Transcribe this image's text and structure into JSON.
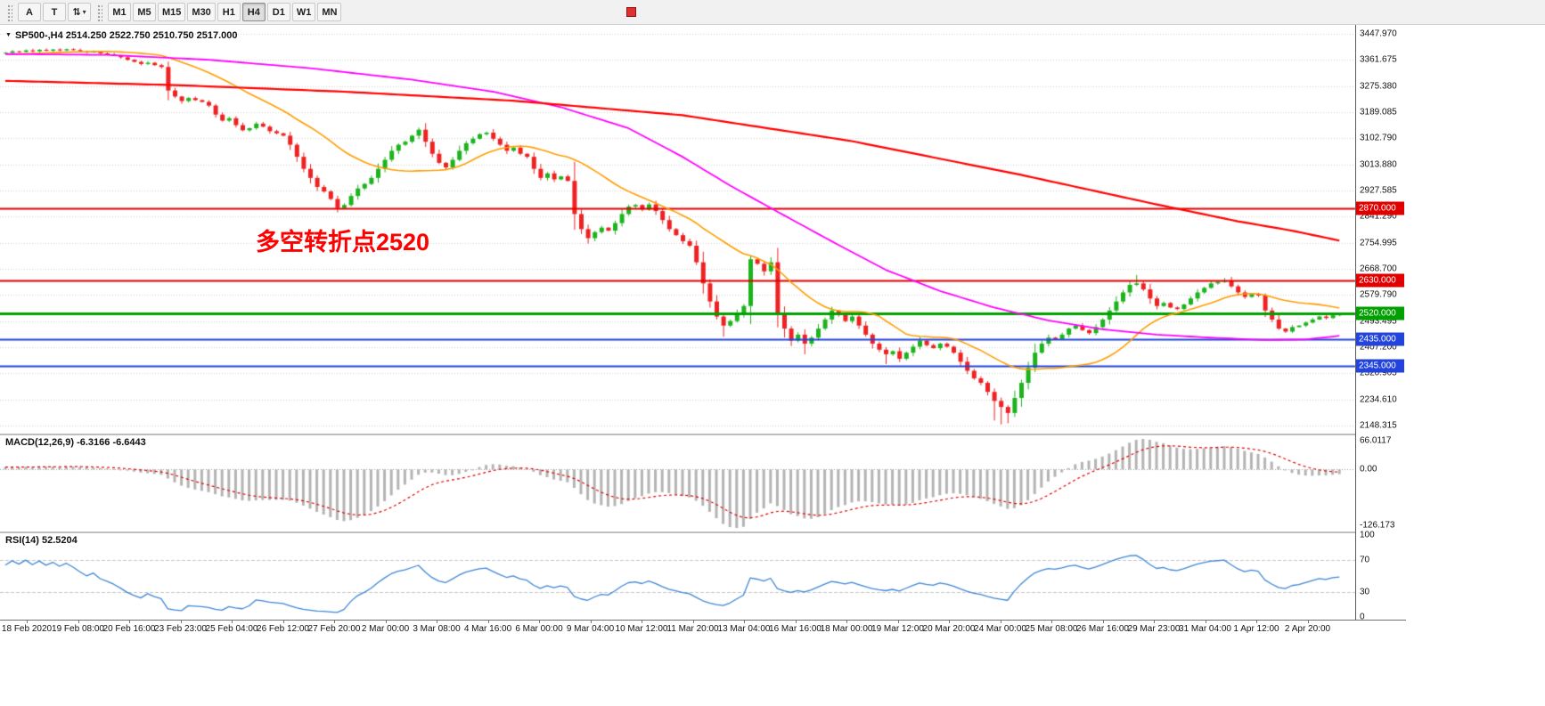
{
  "toolbar": {
    "annotation_button": "A",
    "text_button": "T",
    "arrows_icon": "⇅",
    "caret_icon": "▾",
    "timeframes": [
      "M1",
      "M5",
      "M15",
      "M30",
      "H1",
      "H4",
      "D1",
      "W1",
      "MN"
    ],
    "active_timeframe": "H4"
  },
  "chart": {
    "title": "SP500-,H4  2514.250 2522.750 2510.750 2517.000",
    "context_arrow_icon": "▼",
    "annotation": "多空转折点2520",
    "price_axis_labels": [
      "3447.970",
      "3361.675",
      "3275.380",
      "3189.085",
      "3102.790",
      "3013.880",
      "2927.585",
      "2841.290",
      "2754.995",
      "2668.700",
      "2579.790",
      "2493.495",
      "2407.200",
      "2320.905",
      "2234.610",
      "2148.315"
    ]
  },
  "macd": {
    "label": "MACD(12,26,9) -6.3166 -6.6443",
    "axis_labels": [
      "66.0117",
      "0.00",
      "-126.173"
    ]
  },
  "rsi": {
    "label": "RSI(14) 52.5204",
    "axis_labels": [
      "100",
      "70",
      "30",
      "0"
    ]
  },
  "time_axis_labels": [
    "18 Feb 2020",
    "19 Feb 08:00",
    "20 Feb 16:00",
    "23 Feb 23:00",
    "25 Feb 04:00",
    "26 Feb 12:00",
    "27 Feb 20:00",
    "2 Mar 00:00",
    "3 Mar 08:00",
    "4 Mar 16:00",
    "6 Mar 00:00",
    "9 Mar 04:00",
    "10 Mar 12:00",
    "11 Mar 20:00",
    "13 Mar 04:00",
    "16 Mar 16:00",
    "18 Mar 00:00",
    "19 Mar 12:00",
    "20 Mar 20:00",
    "24 Mar 00:00",
    "25 Mar 08:00",
    "26 Mar 16:00",
    "29 Mar 23:00",
    "31 Mar 04:00",
    "1 Apr 12:00",
    "2 Apr 20:00"
  ],
  "chart_data": {
    "type": "candlestick",
    "symbol": "SP500-",
    "timeframe": "H4",
    "current_ohlc": {
      "open": 2514.25,
      "high": 2522.75,
      "low": 2510.75,
      "close": 2517.0
    },
    "y_range": [
      2148.315,
      3447.97
    ],
    "closes": [
      3385,
      3390,
      3388,
      3393,
      3390,
      3395,
      3392,
      3396,
      3393,
      3397,
      3394,
      3390,
      3386,
      3389,
      3383,
      3380,
      3376,
      3370,
      3362,
      3355,
      3348,
      3352,
      3344,
      3338,
      3260,
      3240,
      3225,
      3235,
      3228,
      3222,
      3210,
      3180,
      3160,
      3168,
      3145,
      3128,
      3135,
      3150,
      3140,
      3125,
      3118,
      3110,
      3080,
      3040,
      3000,
      2970,
      2940,
      2925,
      2900,
      2870,
      2880,
      2910,
      2935,
      2950,
      2970,
      3000,
      3030,
      3060,
      3080,
      3090,
      3110,
      3130,
      3090,
      3050,
      3020,
      3005,
      3030,
      3060,
      3085,
      3100,
      3115,
      3120,
      3100,
      3080,
      3060,
      3070,
      3050,
      3040,
      3000,
      2970,
      2985,
      2965,
      2975,
      2960,
      2850,
      2800,
      2770,
      2790,
      2805,
      2795,
      2820,
      2850,
      2875,
      2880,
      2865,
      2882,
      2860,
      2830,
      2800,
      2780,
      2760,
      2745,
      2690,
      2620,
      2560,
      2510,
      2480,
      2495,
      2520,
      2545,
      2700,
      2685,
      2660,
      2690,
      2520,
      2470,
      2430,
      2450,
      2420,
      2440,
      2470,
      2500,
      2530,
      2515,
      2495,
      2510,
      2480,
      2450,
      2420,
      2400,
      2385,
      2395,
      2370,
      2390,
      2410,
      2430,
      2415,
      2405,
      2420,
      2410,
      2390,
      2360,
      2330,
      2305,
      2290,
      2260,
      2230,
      2210,
      2190,
      2240,
      2290,
      2340,
      2390,
      2420,
      2440,
      2435,
      2450,
      2470,
      2480,
      2465,
      2455,
      2475,
      2500,
      2530,
      2560,
      2590,
      2615,
      2620,
      2600,
      2570,
      2545,
      2555,
      2540,
      2535,
      2550,
      2570,
      2590,
      2605,
      2620,
      2625,
      2630,
      2610,
      2590,
      2575,
      2585,
      2580,
      2530,
      2500,
      2470,
      2460,
      2475,
      2480,
      2490,
      2500,
      2510,
      2505,
      2514,
      2517
    ],
    "wick_overrides": {
      "high": {
        "9": 3399,
        "110": 2712,
        "167": 2648,
        "180": 2638,
        "197": 2523
      },
      "low": {
        "86": 2752,
        "106": 2443,
        "118": 2385,
        "130": 2352,
        "146": 2165,
        "147": 2152,
        "148": 2156,
        "197": 2511
      }
    },
    "overlays": {
      "ma_fast": {
        "type": "sma",
        "period": 20,
        "color": "#ff9c00"
      },
      "ma_mid": {
        "type": "anchors",
        "color": "#ff00ff",
        "points": [
          [
            0,
            3381
          ],
          [
            15,
            3378
          ],
          [
            30,
            3362
          ],
          [
            45,
            3334
          ],
          [
            60,
            3296
          ],
          [
            72,
            3256
          ],
          [
            82,
            3205
          ],
          [
            92,
            3135
          ],
          [
            100,
            3040
          ],
          [
            107,
            2945
          ],
          [
            114,
            2858
          ],
          [
            122,
            2760
          ],
          [
            130,
            2665
          ],
          [
            138,
            2595
          ],
          [
            146,
            2540
          ],
          [
            154,
            2497
          ],
          [
            162,
            2468
          ],
          [
            170,
            2450
          ],
          [
            178,
            2440
          ],
          [
            186,
            2432
          ],
          [
            192,
            2434
          ],
          [
            197,
            2446
          ]
        ]
      },
      "ma_slow": {
        "type": "anchors",
        "color": "#ff0000",
        "points": [
          [
            0,
            3292
          ],
          [
            25,
            3278
          ],
          [
            50,
            3256
          ],
          [
            75,
            3226
          ],
          [
            100,
            3178
          ],
          [
            125,
            3092
          ],
          [
            150,
            2980
          ],
          [
            170,
            2882
          ],
          [
            182,
            2826
          ],
          [
            190,
            2795
          ],
          [
            197,
            2762
          ]
        ]
      }
    },
    "levels": [
      {
        "price": 2870,
        "label": "2870.000",
        "color": "#e00000",
        "width": 2
      },
      {
        "price": 2630,
        "label": "2630.000",
        "color": "#e00000",
        "width": 2
      },
      {
        "price": 2520,
        "label": "2520.000",
        "color": "#00a000",
        "width": 3
      },
      {
        "price": 2435,
        "label": "2435.000",
        "color": "#2244dd",
        "width": 2
      },
      {
        "price": 2345,
        "label": "2345.000",
        "color": "#2244dd",
        "width": 2
      }
    ],
    "macd_settings": {
      "fast": 12,
      "slow": 26,
      "signal": 9,
      "values": [
        -6.3166,
        -6.6443
      ],
      "axis_range": [
        -126.173,
        66.0117
      ]
    },
    "rsi_settings": {
      "period": 14,
      "value": 52.5204,
      "levels": [
        70,
        30
      ],
      "axis_range": [
        0,
        100
      ]
    },
    "colors": {
      "up": "#1db31d",
      "down": "#ee2222",
      "grid": "#d2d2d2",
      "macd_hist": "#b4b4b4",
      "macd_signal": "#e00000",
      "rsi_line": "#3f86d4",
      "rsi_level": "#c6c6c6",
      "annotation": "#ff0000",
      "zero_line": "#9a9a9a"
    }
  }
}
